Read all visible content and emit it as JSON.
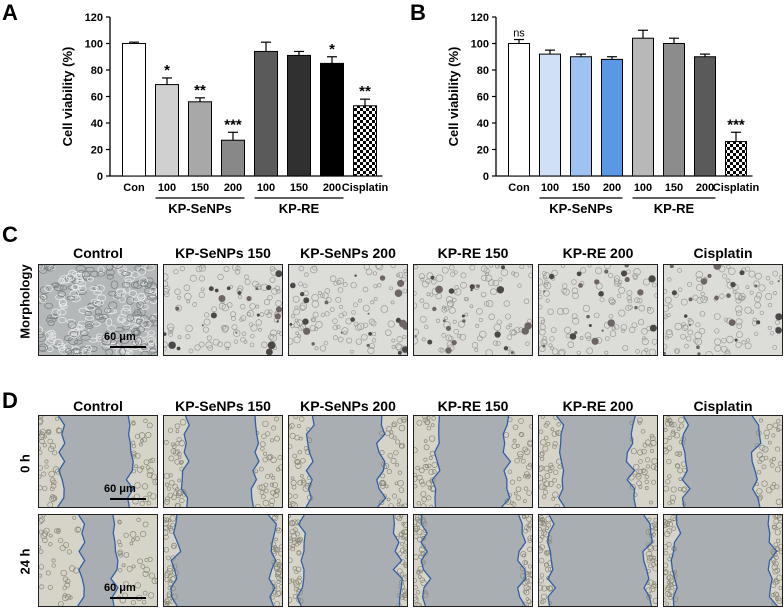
{
  "panels": {
    "a": "A",
    "b": "B",
    "c": "C",
    "d": "D"
  },
  "charts": {
    "a": {
      "ylabel": "Cell viability (%)",
      "yticks": [
        "0",
        "20",
        "40",
        "60",
        "80",
        "100",
        "120"
      ],
      "group1": "KP-SeNPs",
      "group2": "KP-RE"
    },
    "b": {
      "ylabel": "Cell viability (%)",
      "yticks": [
        "0",
        "20",
        "40",
        "60",
        "80",
        "100",
        "120"
      ],
      "group1": "KP-SeNPs",
      "group2": "KP-RE"
    }
  },
  "chart_data": [
    {
      "type": "bar",
      "title": "",
      "ylabel": "Cell viability (%)",
      "ylim": [
        0,
        120
      ],
      "categories": [
        "Con",
        "100",
        "150",
        "200",
        "100",
        "150",
        "200",
        "Cisplatin"
      ],
      "values": [
        100,
        69,
        56,
        27,
        94,
        91,
        85,
        53
      ],
      "errors": [
        1,
        5,
        3,
        6,
        7,
        3,
        5,
        5
      ],
      "significance": [
        "",
        "*",
        "**",
        "***",
        "",
        "",
        "*",
        "**"
      ],
      "fills": [
        "#ffffff",
        "#d0d0d0",
        "#a8a8a8",
        "#888888",
        "#5a5a5a",
        "#303030",
        "#000000",
        "checker"
      ]
    },
    {
      "type": "bar",
      "title": "",
      "ylabel": "Cell viability (%)",
      "ylim": [
        0,
        120
      ],
      "categories": [
        "Con",
        "100",
        "150",
        "200",
        "100",
        "150",
        "200",
        "Cisplatin"
      ],
      "values": [
        100,
        92,
        90,
        88,
        104,
        100,
        90,
        26
      ],
      "errors": [
        3,
        3,
        2,
        2,
        6,
        4,
        2,
        7
      ],
      "significance": [
        "ns",
        "",
        "",
        "",
        "",
        "",
        "",
        "***"
      ],
      "fills": [
        "#ffffff",
        "#cfe0f7",
        "#9ec3f3",
        "#5a98e6",
        "#b8b8b8",
        "#8c8c8c",
        "#5a5a5a",
        "checker"
      ]
    }
  ],
  "columns": [
    "Control",
    "KP-SeNPs 150",
    "KP-SeNPs 200",
    "KP-RE 150",
    "KP-RE 200",
    "Cisplatin"
  ],
  "rows": {
    "morphology": "Morphology",
    "h0": "0 h",
    "h24": "24 h"
  },
  "scale_bar": "60 μm",
  "icons": {
    "micrograph": "microscopy-image"
  }
}
